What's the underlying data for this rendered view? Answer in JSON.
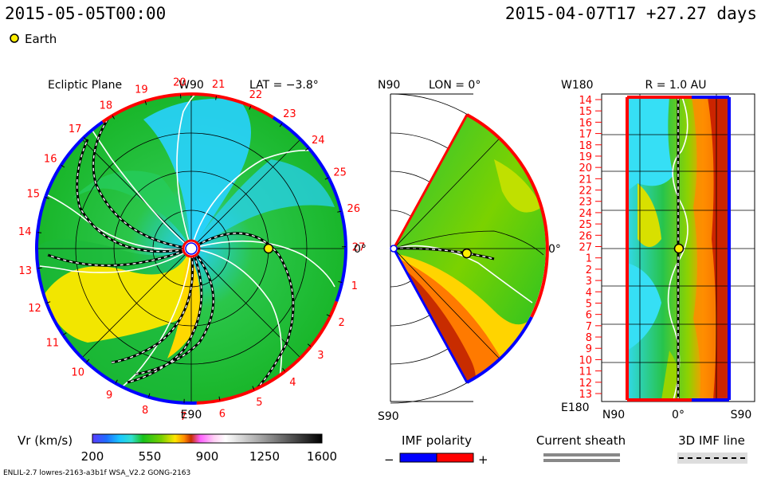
{
  "header": {
    "model_time": "2015-05-05T00:00",
    "run_info": "2015-04-07T17 +27.27 days",
    "earth_legend": "Earth"
  },
  "colors": {
    "red_polarity": "#ff0000",
    "blue_polarity": "#0000ff",
    "red_label": "#ff0000",
    "earth_marker": "#ffee00",
    "sheath": "#888888"
  },
  "chart_data": [
    {
      "type": "heatmap",
      "panel": "ecliptic-plane",
      "title": "Ecliptic Plane",
      "top_label": "W90",
      "bottom_label": "E90",
      "right_label": "0°",
      "lat_label": "LAT = −3.8°",
      "carrington_ticks": [
        "20",
        "21",
        "22",
        "23",
        "24",
        "25",
        "26",
        "27",
        "1",
        "2",
        "3",
        "4",
        "5",
        "6",
        "7",
        "8",
        "9",
        "10",
        "11",
        "12",
        "13",
        "14",
        "15",
        "16",
        "17",
        "18",
        "19"
      ],
      "earth": {
        "r_au": 1.0,
        "angle_deg": 0
      }
    },
    {
      "type": "heatmap",
      "panel": "meridional-plane",
      "title": "LON = 0°",
      "top_label": "N90",
      "bottom_label": "S90",
      "right_label": "0°",
      "earth": {
        "r_au": 1.0,
        "lat_deg": -3.8
      }
    },
    {
      "type": "heatmap",
      "panel": "radial-surface",
      "title": "R = 1.0 AU",
      "top_left_label": "W180",
      "bottom_left_label": "E180",
      "x_tick_labels": [
        "N90",
        "0°",
        "S90"
      ],
      "y_tick_labels": [
        "14",
        "15",
        "16",
        "17",
        "18",
        "19",
        "20",
        "21",
        "22",
        "23",
        "24",
        "25",
        "26",
        "27",
        "1",
        "2",
        "3",
        "4",
        "5",
        "6",
        "7",
        "8",
        "9",
        "10",
        "11",
        "12",
        "13"
      ]
    },
    {
      "type": "bar",
      "panel": "velocity-colorbar",
      "label": "Vr (km/s)",
      "ticks": [
        200,
        550,
        900,
        1250,
        1600
      ],
      "range": [
        200,
        1600
      ]
    }
  ],
  "legends": {
    "imf_polarity": {
      "title": "IMF polarity",
      "minus": "−",
      "plus": "+"
    },
    "current_sheath": {
      "title": "Current sheath"
    },
    "imf_line": {
      "title": "3D IMF line"
    }
  },
  "footer": {
    "model_info": "ENLIL-2.7 lowres-2163-a3b1f WSA_V2.2 GONG-2163"
  }
}
